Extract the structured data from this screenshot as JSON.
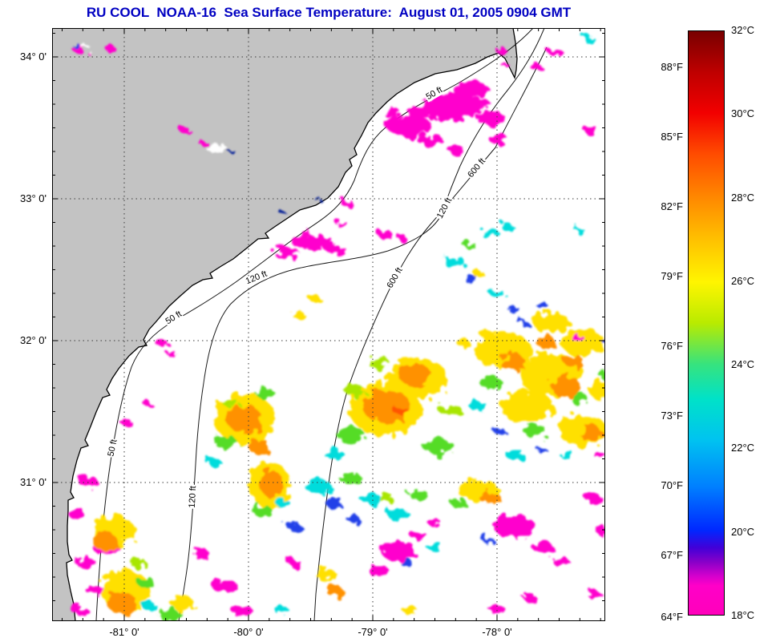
{
  "title": "RU COOL  NOAA-16  Sea Surface Temperature:  August 01, 2005 0904 GMT",
  "map": {
    "lat_labels": [
      "34° 0'",
      "33° 0'",
      "32° 0'",
      "31° 0'"
    ],
    "lon_labels": [
      "-81° 0'",
      "-80° 0'",
      "-79° 0'",
      "-78° 0'"
    ],
    "contour_labels": [
      {
        "text": "50 ft"
      },
      {
        "text": "600 ft"
      },
      {
        "text": "120 ft"
      },
      {
        "text": "120 ft"
      },
      {
        "text": "600 ft"
      },
      {
        "text": "50 ft"
      },
      {
        "text": "50 ft"
      },
      {
        "text": "120 ft"
      }
    ],
    "land_color": "#c3c3c3",
    "ocean_color": "#ffffff",
    "title_color": "#0000c2"
  },
  "colorbar": {
    "celsius_labels": [
      "32°C",
      "30°C",
      "28°C",
      "26°C",
      "24°C",
      "22°C",
      "20°C",
      "18°C"
    ],
    "fahrenheit_labels": [
      "88°F",
      "85°F",
      "82°F",
      "79°F",
      "76°F",
      "73°F",
      "70°F",
      "67°F",
      "64°F"
    ],
    "min_c": 18,
    "max_c": 32,
    "top_color": "#780000",
    "bottom_color": "#ff00bb"
  },
  "sst_palette": {
    "magenta_cold_flag": "#ff00cd",
    "blue": "#2341e8",
    "cyan": "#00dcdc",
    "green": "#55dc28",
    "yellow_green": "#a8e600",
    "yellow": "#ffe000",
    "orange": "#ff9100",
    "red_orange": "#ff5500"
  }
}
